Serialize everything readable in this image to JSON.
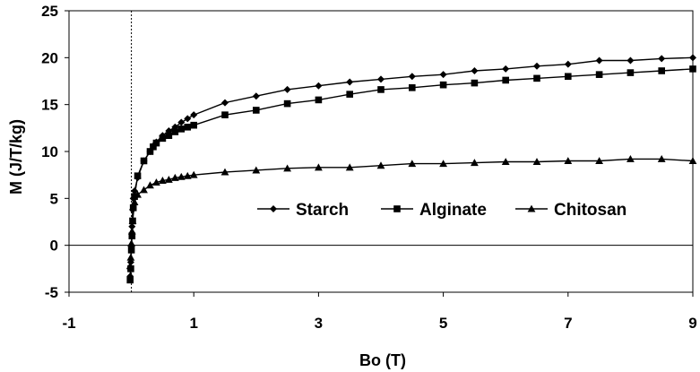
{
  "chart_data": {
    "type": "scatter",
    "xlabel": "Bo (T)",
    "ylabel": "M (J/T/kg)",
    "xlim": [
      -1,
      9
    ],
    "ylim": [
      -5,
      25
    ],
    "x_ticks": [
      "-1",
      "1",
      "3",
      "5",
      "7",
      "9"
    ],
    "y_ticks": [
      "-5",
      "0",
      "5",
      "10",
      "15",
      "20",
      "25"
    ],
    "grid": false,
    "legend_position": "center-right",
    "series": [
      {
        "name": "Starch",
        "marker": "diamond",
        "color": "#000000",
        "points": [
          [
            -0.02,
            -3.3
          ],
          [
            -0.01,
            -1.8
          ],
          [
            0,
            0
          ],
          [
            0.01,
            2
          ],
          [
            0.02,
            3.8
          ],
          [
            0.03,
            5
          ],
          [
            0.05,
            5.8
          ],
          [
            0.1,
            7.2
          ],
          [
            0.2,
            9
          ],
          [
            0.3,
            10
          ],
          [
            0.35,
            10.6
          ],
          [
            0.4,
            11
          ],
          [
            0.5,
            11.7
          ],
          [
            0.6,
            12.2
          ],
          [
            0.7,
            12.6
          ],
          [
            0.8,
            13.1
          ],
          [
            0.9,
            13.5
          ],
          [
            1,
            13.9
          ],
          [
            1.5,
            15.2
          ],
          [
            2,
            15.9
          ],
          [
            2.5,
            16.6
          ],
          [
            3,
            17
          ],
          [
            3.5,
            17.4
          ],
          [
            4,
            17.7
          ],
          [
            4.5,
            18
          ],
          [
            5,
            18.2
          ],
          [
            5.5,
            18.6
          ],
          [
            6,
            18.8
          ],
          [
            6.5,
            19.1
          ],
          [
            7,
            19.3
          ],
          [
            7.5,
            19.7
          ],
          [
            8,
            19.7
          ],
          [
            8.5,
            19.9
          ],
          [
            9,
            20
          ]
        ]
      },
      {
        "name": "Alginate",
        "marker": "square",
        "color": "#000000",
        "points": [
          [
            -0.02,
            -3.7
          ],
          [
            -0.01,
            -2.5
          ],
          [
            0,
            -0.5
          ],
          [
            0.01,
            1
          ],
          [
            0.02,
            2.6
          ],
          [
            0.03,
            4
          ],
          [
            0.05,
            5.2
          ],
          [
            0.1,
            7.4
          ],
          [
            0.2,
            9
          ],
          [
            0.3,
            10
          ],
          [
            0.35,
            10.5
          ],
          [
            0.4,
            10.9
          ],
          [
            0.5,
            11.4
          ],
          [
            0.6,
            11.7
          ],
          [
            0.7,
            12.1
          ],
          [
            0.8,
            12.4
          ],
          [
            0.9,
            12.6
          ],
          [
            1,
            12.8
          ],
          [
            1.5,
            13.9
          ],
          [
            2,
            14.4
          ],
          [
            2.5,
            15.1
          ],
          [
            3,
            15.5
          ],
          [
            3.5,
            16.1
          ],
          [
            4,
            16.6
          ],
          [
            4.5,
            16.8
          ],
          [
            5,
            17.1
          ],
          [
            5.5,
            17.3
          ],
          [
            6,
            17.6
          ],
          [
            6.5,
            17.8
          ],
          [
            7,
            18
          ],
          [
            7.5,
            18.2
          ],
          [
            8,
            18.4
          ],
          [
            8.5,
            18.6
          ],
          [
            9,
            18.8
          ]
        ]
      },
      {
        "name": "Chitosan",
        "marker": "triangle",
        "color": "#000000",
        "points": [
          [
            -0.02,
            -2.2
          ],
          [
            -0.01,
            -1.3
          ],
          [
            0,
            0.2
          ],
          [
            0.01,
            1.5
          ],
          [
            0.02,
            2.6
          ],
          [
            0.05,
            4.6
          ],
          [
            0.1,
            5.4
          ],
          [
            0.2,
            5.9
          ],
          [
            0.3,
            6.4
          ],
          [
            0.4,
            6.7
          ],
          [
            0.5,
            6.9
          ],
          [
            0.6,
            7
          ],
          [
            0.7,
            7.2
          ],
          [
            0.8,
            7.3
          ],
          [
            0.9,
            7.4
          ],
          [
            1,
            7.5
          ],
          [
            1.5,
            7.8
          ],
          [
            2,
            8
          ],
          [
            2.5,
            8.2
          ],
          [
            3,
            8.3
          ],
          [
            3.5,
            8.3
          ],
          [
            4,
            8.5
          ],
          [
            4.5,
            8.7
          ],
          [
            5,
            8.7
          ],
          [
            5.5,
            8.8
          ],
          [
            6,
            8.9
          ],
          [
            6.5,
            8.9
          ],
          [
            7,
            9
          ],
          [
            7.5,
            9
          ],
          [
            8,
            9.2
          ],
          [
            8.5,
            9.2
          ],
          [
            9,
            9
          ]
        ]
      }
    ]
  }
}
